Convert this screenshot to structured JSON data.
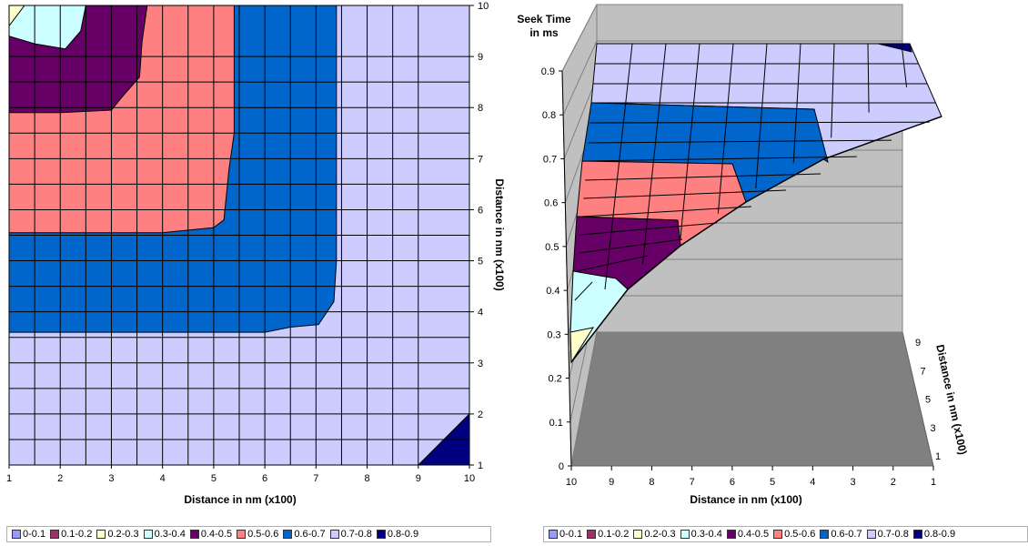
{
  "chart_data": [
    {
      "type": "contour",
      "title": "",
      "xlabel": "Distance in nm (x100)",
      "ylabel": "Distance in nm (x100)",
      "x_ticks": [
        "1",
        "2",
        "3",
        "4",
        "5",
        "6",
        "7",
        "8",
        "9",
        "10"
      ],
      "y_ticks": [
        "1",
        "2",
        "3",
        "4",
        "5",
        "6",
        "7",
        "8",
        "9",
        "10"
      ],
      "xlim": [
        1,
        10
      ],
      "ylim": [
        1,
        10
      ],
      "grid": true,
      "legend_position": "bottom",
      "regions": [
        {
          "range": "0.7-0.8",
          "color": "#ccccff",
          "polygon": [
            [
              1,
              1
            ],
            [
              10,
              1
            ],
            [
              10,
              10
            ],
            [
              1,
              10
            ]
          ]
        },
        {
          "range": "0.6-0.7",
          "color": "#0066cc",
          "polygon": [
            [
              1,
              3.6
            ],
            [
              6,
              3.6
            ],
            [
              6.5,
              3.7
            ],
            [
              7.05,
              3.75
            ],
            [
              7.35,
              4.2
            ],
            [
              7.4,
              5
            ],
            [
              7.4,
              10
            ],
            [
              1,
              10
            ]
          ]
        },
        {
          "range": "0.5-0.6",
          "color": "#ff8080",
          "polygon": [
            [
              1,
              5.55
            ],
            [
              4,
              5.55
            ],
            [
              5,
              5.65
            ],
            [
              5.2,
              5.8
            ],
            [
              5.3,
              6.8
            ],
            [
              5.4,
              7.5
            ],
            [
              5.4,
              10
            ],
            [
              1,
              10
            ]
          ]
        },
        {
          "range": "0.4-0.5",
          "color": "#660066",
          "polygon": [
            [
              1,
              7.9
            ],
            [
              2,
              7.9
            ],
            [
              3,
              7.95
            ],
            [
              3.2,
              8.2
            ],
            [
              3.55,
              8.6
            ],
            [
              3.6,
              9.3
            ],
            [
              3.7,
              10
            ],
            [
              1,
              10
            ]
          ]
        },
        {
          "range": "0.3-0.4",
          "color": "#ccffff",
          "polygon": [
            [
              1,
              9.4
            ],
            [
              1.5,
              9.25
            ],
            [
              2.1,
              9.15
            ],
            [
              2.4,
              9.5
            ],
            [
              2.5,
              10
            ],
            [
              1,
              10
            ]
          ]
        },
        {
          "range": "0.2-0.3",
          "color": "#ffffcc",
          "polygon": [
            [
              1,
              9.6
            ],
            [
              1.3,
              10
            ],
            [
              1,
              10
            ]
          ]
        },
        {
          "range": "0.8-0.9",
          "color": "#000080",
          "polygon": [
            [
              9,
              1
            ],
            [
              10,
              1
            ],
            [
              10,
              2
            ]
          ]
        }
      ]
    },
    {
      "type": "surface",
      "title": "",
      "zlabel": "Seek Time\nin ms",
      "xlabel": "Distance in nm (x100)",
      "ylabel": "Distance in nm (x100)",
      "x_ticks": [
        "10",
        "9",
        "8",
        "7",
        "6",
        "5",
        "4",
        "3",
        "2",
        "1"
      ],
      "z_ticks": [
        "0",
        "0.1",
        "0.2",
        "0.3",
        "0.4",
        "0.5",
        "0.6",
        "0.7",
        "0.8",
        "0.9"
      ],
      "y_ticks": [
        "1",
        "3",
        "5",
        "7",
        "9"
      ],
      "zlim": [
        0,
        0.9
      ],
      "grid": true,
      "legend_position": "bottom"
    }
  ],
  "legend": [
    {
      "label": "0-0.1",
      "color": "#9999ff"
    },
    {
      "label": "0.1-0.2",
      "color": "#993366"
    },
    {
      "label": "0.2-0.3",
      "color": "#ffffcc"
    },
    {
      "label": "0.3-0.4",
      "color": "#ccffff"
    },
    {
      "label": "0.4-0.5",
      "color": "#660066"
    },
    {
      "label": "0.5-0.6",
      "color": "#ff8080"
    },
    {
      "label": "0.6-0.7",
      "color": "#0066cc"
    },
    {
      "label": "0.7-0.8",
      "color": "#ccccff"
    },
    {
      "label": "0.8-0.9",
      "color": "#000080"
    }
  ]
}
